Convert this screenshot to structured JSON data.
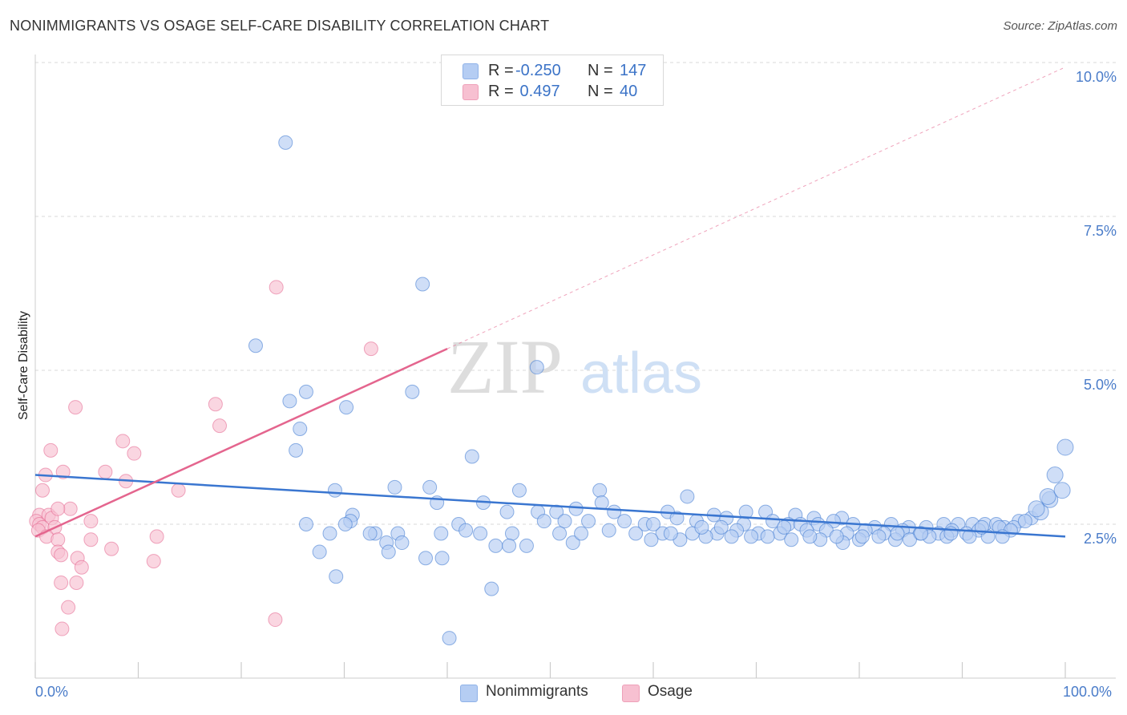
{
  "title": "NONIMMIGRANTS VS OSAGE SELF-CARE DISABILITY CORRELATION CHART",
  "source": "Source: ZipAtlas.com",
  "watermark": {
    "zip": "ZIP",
    "atlas": "atlas"
  },
  "colors": {
    "blue": "#3a76d0",
    "blue_fill": "#b5cdf3",
    "pink": "#e4658e",
    "pink_fill": "#f7c0d1",
    "tick_text": "#4a7cc9",
    "grid": "#d9d9d9"
  },
  "legend": {
    "rows": [
      {
        "r_label": "R =",
        "r_value": "-0.250",
        "n_label": "N =",
        "n_value": "147"
      },
      {
        "r_label": "R =",
        "r_value": " 0.497",
        "n_label": "N =",
        "n_value": " 40"
      }
    ]
  },
  "bottom_legend": {
    "series1": "Nonimmigrants",
    "series2": "Osage"
  },
  "chart_data": {
    "type": "scatter",
    "xlabel": "",
    "ylabel": "Self-Care Disability",
    "xlim": [
      0,
      100
    ],
    "ylim": [
      0,
      10
    ],
    "x_tick_labels": {
      "left": "0.0%",
      "right": "100.0%"
    },
    "y_ticks": [
      {
        "value": 2.5,
        "label": "2.5%"
      },
      {
        "value": 5.0,
        "label": "5.0%"
      },
      {
        "value": 7.5,
        "label": "7.5%"
      },
      {
        "value": 10.0,
        "label": "10.0%"
      }
    ],
    "grid": true,
    "legend_position": "top-center",
    "series": [
      {
        "name": "Nonimmigrants",
        "color": "#3a76d0",
        "trend": {
          "x": [
            0,
            100
          ],
          "y": [
            3.3,
            2.3
          ]
        },
        "points": [
          [
            24.3,
            8.7
          ],
          [
            37.6,
            6.4
          ],
          [
            21.4,
            5.4
          ],
          [
            48.7,
            5.05
          ],
          [
            26.3,
            4.65
          ],
          [
            36.6,
            4.65
          ],
          [
            24.7,
            4.5
          ],
          [
            30.2,
            4.4
          ],
          [
            25.7,
            4.05
          ],
          [
            25.3,
            3.7
          ],
          [
            42.4,
            3.6
          ],
          [
            34.9,
            3.1
          ],
          [
            38.3,
            3.1
          ],
          [
            29.1,
            3.05
          ],
          [
            47.0,
            3.05
          ],
          [
            54.8,
            3.05
          ],
          [
            39.0,
            2.85
          ],
          [
            43.5,
            2.85
          ],
          [
            55.0,
            2.85
          ],
          [
            63.3,
            2.95
          ],
          [
            30.8,
            2.65
          ],
          [
            45.8,
            2.7
          ],
          [
            48.8,
            2.7
          ],
          [
            50.6,
            2.7
          ],
          [
            52.5,
            2.75
          ],
          [
            56.2,
            2.7
          ],
          [
            61.4,
            2.7
          ],
          [
            65.9,
            2.65
          ],
          [
            69.0,
            2.7
          ],
          [
            70.9,
            2.7
          ],
          [
            73.8,
            2.65
          ],
          [
            75.6,
            2.6
          ],
          [
            78.3,
            2.6
          ],
          [
            26.3,
            2.5
          ],
          [
            30.6,
            2.55
          ],
          [
            41.1,
            2.5
          ],
          [
            49.4,
            2.55
          ],
          [
            51.4,
            2.55
          ],
          [
            53.7,
            2.55
          ],
          [
            57.2,
            2.55
          ],
          [
            59.2,
            2.5
          ],
          [
            62.3,
            2.6
          ],
          [
            64.2,
            2.55
          ],
          [
            67.1,
            2.6
          ],
          [
            68.8,
            2.5
          ],
          [
            71.6,
            2.55
          ],
          [
            73.1,
            2.5
          ],
          [
            74.3,
            2.5
          ],
          [
            76.0,
            2.5
          ],
          [
            77.5,
            2.55
          ],
          [
            79.4,
            2.5
          ],
          [
            81.5,
            2.45
          ],
          [
            83.1,
            2.5
          ],
          [
            84.8,
            2.45
          ],
          [
            86.5,
            2.45
          ],
          [
            88.2,
            2.5
          ],
          [
            89.6,
            2.5
          ],
          [
            91.0,
            2.5
          ],
          [
            92.2,
            2.5
          ],
          [
            93.3,
            2.5
          ],
          [
            94.1,
            2.45
          ],
          [
            95.5,
            2.55
          ],
          [
            96.7,
            2.6
          ],
          [
            97.6,
            2.7
          ],
          [
            98.5,
            2.9
          ],
          [
            99.0,
            3.3
          ],
          [
            100.0,
            3.75
          ],
          [
            28.6,
            2.35
          ],
          [
            33.0,
            2.35
          ],
          [
            35.2,
            2.35
          ],
          [
            39.4,
            2.35
          ],
          [
            41.8,
            2.4
          ],
          [
            43.2,
            2.35
          ],
          [
            46.3,
            2.35
          ],
          [
            50.9,
            2.35
          ],
          [
            55.7,
            2.4
          ],
          [
            58.3,
            2.35
          ],
          [
            60.9,
            2.35
          ],
          [
            63.8,
            2.35
          ],
          [
            66.2,
            2.35
          ],
          [
            68.1,
            2.4
          ],
          [
            70.2,
            2.35
          ],
          [
            72.3,
            2.35
          ],
          [
            74.9,
            2.4
          ],
          [
            76.8,
            2.4
          ],
          [
            78.8,
            2.35
          ],
          [
            80.6,
            2.4
          ],
          [
            82.4,
            2.35
          ],
          [
            84.2,
            2.4
          ],
          [
            85.9,
            2.35
          ],
          [
            87.7,
            2.35
          ],
          [
            89.0,
            2.4
          ],
          [
            90.4,
            2.35
          ],
          [
            91.6,
            2.4
          ],
          [
            93.6,
            2.45
          ],
          [
            95.0,
            2.45
          ],
          [
            96.1,
            2.55
          ],
          [
            97.2,
            2.75
          ],
          [
            98.3,
            2.95
          ],
          [
            99.7,
            3.05
          ],
          [
            34.1,
            2.2
          ],
          [
            35.6,
            2.2
          ],
          [
            44.7,
            2.15
          ],
          [
            47.7,
            2.15
          ],
          [
            52.2,
            2.2
          ],
          [
            59.8,
            2.25
          ],
          [
            62.6,
            2.25
          ],
          [
            65.1,
            2.3
          ],
          [
            67.6,
            2.3
          ],
          [
            71.1,
            2.3
          ],
          [
            73.4,
            2.25
          ],
          [
            76.2,
            2.25
          ],
          [
            78.4,
            2.2
          ],
          [
            80.0,
            2.25
          ],
          [
            81.9,
            2.3
          ],
          [
            83.5,
            2.25
          ],
          [
            84.9,
            2.25
          ],
          [
            86.8,
            2.3
          ],
          [
            88.5,
            2.3
          ],
          [
            90.7,
            2.3
          ],
          [
            92.5,
            2.3
          ],
          [
            94.7,
            2.4
          ],
          [
            27.6,
            2.05
          ],
          [
            34.3,
            2.05
          ],
          [
            37.9,
            1.95
          ],
          [
            39.5,
            1.95
          ],
          [
            29.2,
            1.65
          ],
          [
            44.3,
            1.45
          ],
          [
            40.2,
            0.65
          ],
          [
            30.1,
            2.5
          ],
          [
            32.5,
            2.35
          ],
          [
            46.0,
            2.15
          ],
          [
            53.0,
            2.35
          ],
          [
            60.0,
            2.5
          ],
          [
            61.7,
            2.35
          ],
          [
            64.7,
            2.45
          ],
          [
            66.6,
            2.45
          ],
          [
            69.5,
            2.3
          ],
          [
            72.7,
            2.45
          ],
          [
            75.2,
            2.3
          ],
          [
            77.8,
            2.3
          ],
          [
            80.3,
            2.3
          ],
          [
            83.7,
            2.35
          ],
          [
            86.0,
            2.35
          ],
          [
            88.9,
            2.35
          ],
          [
            91.9,
            2.45
          ],
          [
            93.9,
            2.3
          ]
        ]
      },
      {
        "name": "Osage",
        "color": "#e4658e",
        "trend": {
          "x": [
            0,
            40
          ],
          "y": [
            2.3,
            5.35
          ]
        },
        "points": [
          [
            23.4,
            6.35
          ],
          [
            32.6,
            5.35
          ],
          [
            3.9,
            4.4
          ],
          [
            17.5,
            4.45
          ],
          [
            17.9,
            4.1
          ],
          [
            1.5,
            3.7
          ],
          [
            8.5,
            3.85
          ],
          [
            9.6,
            3.65
          ],
          [
            1.0,
            3.3
          ],
          [
            2.7,
            3.35
          ],
          [
            6.8,
            3.35
          ],
          [
            8.8,
            3.2
          ],
          [
            13.9,
            3.05
          ],
          [
            0.7,
            3.05
          ],
          [
            0.4,
            2.65
          ],
          [
            1.3,
            2.65
          ],
          [
            1.6,
            2.6
          ],
          [
            3.4,
            2.75
          ],
          [
            2.2,
            2.75
          ],
          [
            0.1,
            2.55
          ],
          [
            0.4,
            2.5
          ],
          [
            0.7,
            2.45
          ],
          [
            1.9,
            2.45
          ],
          [
            0.3,
            2.4
          ],
          [
            5.4,
            2.55
          ],
          [
            1.1,
            2.3
          ],
          [
            2.2,
            2.25
          ],
          [
            11.8,
            2.3
          ],
          [
            5.4,
            2.25
          ],
          [
            7.4,
            2.1
          ],
          [
            2.2,
            2.05
          ],
          [
            2.5,
            2.0
          ],
          [
            4.1,
            1.95
          ],
          [
            11.5,
            1.9
          ],
          [
            4.5,
            1.8
          ],
          [
            2.5,
            1.55
          ],
          [
            4.0,
            1.55
          ],
          [
            3.2,
            1.15
          ],
          [
            2.6,
            0.8
          ],
          [
            23.3,
            0.95
          ]
        ]
      }
    ]
  }
}
